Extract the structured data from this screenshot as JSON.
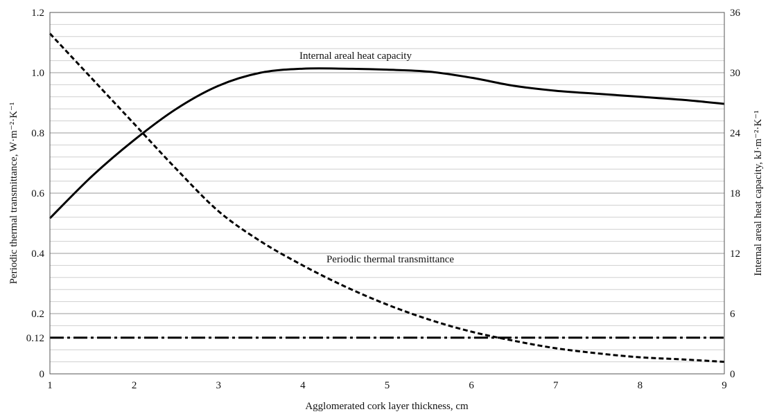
{
  "chart_data": {
    "type": "line",
    "xlabel": "Agglomerated cork layer thickness, cm",
    "ylabel_left": "Periodic thermal transmittance, W·m⁻²·K⁻¹",
    "ylabel_right": "Internal areal heat capacity, kJ·m⁻²·K⁻¹",
    "xlim": [
      1,
      9
    ],
    "ylim_left": [
      0,
      1.2
    ],
    "ylim_right": [
      0,
      36
    ],
    "x_ticks": [
      "1",
      "2",
      "3",
      "4",
      "5",
      "6",
      "7",
      "8",
      "9"
    ],
    "y_left_ticks": [
      "0",
      "0.12",
      "0.2",
      "0.4",
      "0.6",
      "0.8",
      "1.0",
      "1.2"
    ],
    "y_right_ticks": [
      "0",
      "6",
      "12",
      "18",
      "24",
      "30",
      "36"
    ],
    "grid": true,
    "series": [
      {
        "name": "Internal areal heat capacity",
        "axis": "right",
        "style": "solid",
        "color": "#000000",
        "x": [
          1,
          1.5,
          2,
          2.5,
          3,
          3.5,
          4,
          4.5,
          5,
          5.5,
          6,
          6.5,
          7,
          7.5,
          8,
          8.5,
          9
        ],
        "y": [
          15.5,
          19.7,
          23.3,
          26.4,
          28.7,
          30.0,
          30.4,
          30.4,
          30.3,
          30.1,
          29.5,
          28.7,
          28.2,
          27.9,
          27.6,
          27.3,
          26.9
        ]
      },
      {
        "name": "Periodic thermal transmittance",
        "axis": "left",
        "style": "dashed",
        "color": "#000000",
        "x": [
          1,
          1.5,
          2,
          2.5,
          3,
          3.5,
          4,
          4.5,
          5,
          5.5,
          6,
          6.5,
          7,
          7.5,
          8,
          8.5,
          9
        ],
        "y": [
          1.13,
          0.98,
          0.83,
          0.68,
          0.54,
          0.44,
          0.36,
          0.29,
          0.23,
          0.18,
          0.14,
          0.11,
          0.085,
          0.068,
          0.055,
          0.048,
          0.04
        ]
      }
    ],
    "reference_lines": [
      {
        "label": "0.12",
        "axis": "left",
        "y": 0.12,
        "style": "dash-dot"
      }
    ]
  }
}
